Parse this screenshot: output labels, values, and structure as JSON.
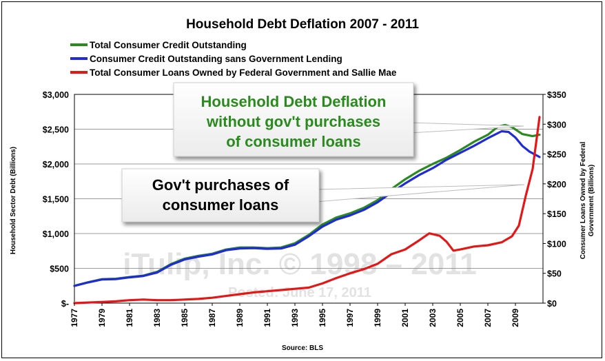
{
  "chart_data": {
    "type": "line",
    "title": "Household Debt Deflation 2007 - 2011",
    "xlabel": "",
    "source": "Source: BLS",
    "ylabel_left": "Household Sector Debt (Billions)",
    "ylabel_right": "Consumer Loans Owned by Federal Government (Billions)",
    "ylim_left": [
      0,
      3000
    ],
    "ylim_right": [
      0,
      350
    ],
    "xlim": [
      1977,
      2011
    ],
    "grid": true,
    "legend_position": "top-left",
    "left_ticks": [
      {
        "value": 0,
        "label": "$-"
      },
      {
        "value": 500,
        "label": "$500"
      },
      {
        "value": 1000,
        "label": "$1,000"
      },
      {
        "value": 1500,
        "label": "$1,500"
      },
      {
        "value": 2000,
        "label": "$2,000"
      },
      {
        "value": 2500,
        "label": "$2,500"
      },
      {
        "value": 3000,
        "label": "$3,000"
      }
    ],
    "right_ticks": [
      {
        "value": 0,
        "label": "$0"
      },
      {
        "value": 50,
        "label": "$50"
      },
      {
        "value": 100,
        "label": "$100"
      },
      {
        "value": 150,
        "label": "$150"
      },
      {
        "value": 200,
        "label": "$200"
      },
      {
        "value": 250,
        "label": "$250"
      },
      {
        "value": 300,
        "label": "$300"
      },
      {
        "value": 350,
        "label": "$350"
      }
    ],
    "x_ticks": [
      {
        "value": 1977,
        "label": "1977"
      },
      {
        "value": 1979,
        "label": "1979"
      },
      {
        "value": 1981,
        "label": "1981"
      },
      {
        "value": 1983,
        "label": "1983"
      },
      {
        "value": 1985,
        "label": "1985"
      },
      {
        "value": 1987,
        "label": "1987"
      },
      {
        "value": 1989,
        "label": "1989"
      },
      {
        "value": 1991,
        "label": "1991"
      },
      {
        "value": 1993,
        "label": "1993"
      },
      {
        "value": 1995,
        "label": "1995"
      },
      {
        "value": 1997,
        "label": "1997"
      },
      {
        "value": 1999,
        "label": "1999"
      },
      {
        "value": 2001,
        "label": "2001"
      },
      {
        "value": 2003,
        "label": "2003"
      },
      {
        "value": 2005,
        "label": "2005"
      },
      {
        "value": 2007,
        "label": "2007"
      },
      {
        "value": 2009,
        "label": "2009"
      }
    ],
    "series": [
      {
        "name": "Total Consumer Credit Outstanding",
        "color": "#2a8a1e",
        "axis": "left",
        "x": [
          1977,
          1978,
          1979,
          1980,
          1981,
          1982,
          1983,
          1984,
          1985,
          1986,
          1987,
          1988,
          1989,
          1990,
          1991,
          1992,
          1993,
          1994,
          1995,
          1996,
          1997,
          1998,
          1999,
          2000,
          2001,
          2002,
          2003,
          2004,
          2005,
          2006,
          2007,
          2007.75,
          2008.25,
          2008.75,
          2009.5,
          2010.25,
          2010.75
        ],
        "y": [
          250,
          300,
          345,
          350,
          375,
          395,
          450,
          560,
          640,
          680,
          710,
          770,
          800,
          800,
          790,
          800,
          860,
          980,
          1130,
          1230,
          1290,
          1370,
          1480,
          1640,
          1780,
          1900,
          2000,
          2090,
          2200,
          2320,
          2420,
          2540,
          2560,
          2530,
          2430,
          2400,
          2420
        ]
      },
      {
        "name": "Consumer Credit Outstanding sans Government Lending",
        "color": "#1f2bd6",
        "axis": "left",
        "x": [
          1977,
          1978,
          1979,
          1980,
          1981,
          1982,
          1983,
          1984,
          1985,
          1986,
          1987,
          1988,
          1989,
          1990,
          1991,
          1992,
          1993,
          1994,
          1995,
          1996,
          1997,
          1998,
          1999,
          2000,
          2001,
          2002,
          2003,
          2004,
          2005,
          2006,
          2007,
          2008,
          2008.5,
          2009,
          2009.5,
          2010,
          2010.75
        ],
        "y": [
          248,
          298,
          340,
          345,
          370,
          390,
          440,
          550,
          628,
          668,
          700,
          760,
          785,
          790,
          780,
          785,
          840,
          960,
          1100,
          1200,
          1260,
          1340,
          1450,
          1590,
          1720,
          1840,
          1940,
          2060,
          2160,
          2260,
          2370,
          2470,
          2460,
          2380,
          2260,
          2180,
          2100
        ]
      },
      {
        "name": "Total Consumer Loans Owned by Federal Government and Sallie Mae",
        "color": "#e51616",
        "axis": "right",
        "x": [
          1977,
          1978,
          1979,
          1980,
          1981,
          1982,
          1983,
          1984,
          1985,
          1986,
          1987,
          1988,
          1989,
          1990,
          1991,
          1992,
          1993,
          1994,
          1995,
          1996,
          1997,
          1998,
          1999,
          2000,
          2001,
          2002,
          2002.75,
          2003.5,
          2004,
          2004.5,
          2005,
          2006,
          2007,
          2008,
          2008.75,
          2009.25,
          2009.75,
          2010.25,
          2010.75
        ],
        "y": [
          0,
          1,
          2,
          3,
          5,
          6,
          5,
          5,
          6,
          7,
          9,
          12,
          15,
          18,
          20,
          22,
          24,
          26,
          33,
          42,
          50,
          57,
          66,
          82,
          90,
          105,
          117,
          113,
          103,
          88,
          90,
          95,
          97,
          102,
          112,
          130,
          180,
          225,
          312
        ]
      }
    ],
    "annotations": [
      {
        "id": "without-gov",
        "lines": [
          "Household Debt Deflation",
          "without gov't purchases",
          "of consumer loans"
        ],
        "color": "#2a8a1e"
      },
      {
        "id": "gov-purchases",
        "lines": [
          "Gov't purchases of",
          "consumer loans"
        ],
        "color": "#000000"
      }
    ],
    "watermark": {
      "line1": "iTulip, Inc. © 1998 – 2011",
      "line2": "Posted: June 17, 2011"
    }
  }
}
